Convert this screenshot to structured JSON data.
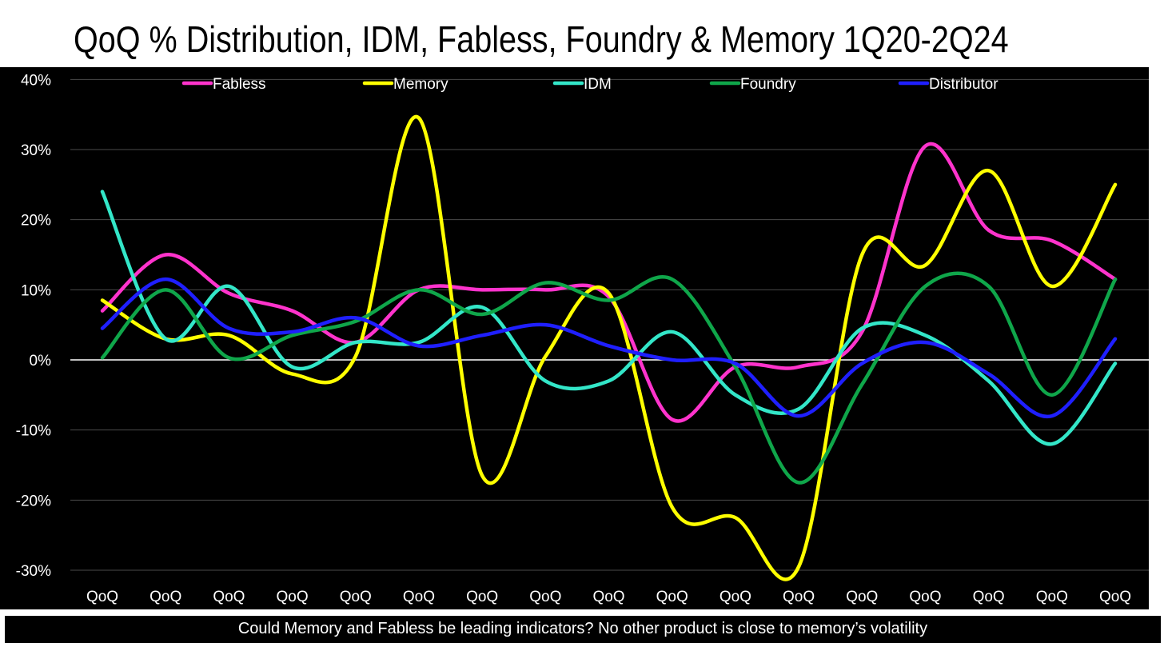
{
  "title": "QoQ % Distribution, IDM, Fabless, Foundry & Memory 1Q20-2Q24",
  "footer": "Could Memory and Fabless be leading indicators? No other product is close to memory’s volatility",
  "chart_data": {
    "type": "line",
    "title": "QoQ % Distribution, IDM, Fabless, Foundry & Memory 1Q20-2Q24",
    "xlabel": "",
    "ylabel": "",
    "categories": [
      "QoQ",
      "QoQ",
      "QoQ",
      "QoQ",
      "QoQ",
      "QoQ",
      "QoQ",
      "QoQ",
      "QoQ",
      "QoQ",
      "QoQ",
      "QoQ",
      "QoQ",
      "QoQ",
      "QoQ",
      "QoQ",
      "QoQ"
    ],
    "ylim": [
      -30,
      40
    ],
    "yticks": [
      40,
      30,
      20,
      10,
      0,
      -10,
      -20,
      -30
    ],
    "ytick_labels": [
      "40%",
      "30%",
      "20%",
      "10%",
      "0%",
      "-10%",
      "-20%",
      "-30%"
    ],
    "grid": true,
    "legend_position": "top",
    "smooth": true,
    "series": [
      {
        "name": "Fabless",
        "color": "#ff33cc",
        "values": [
          7,
          15,
          9.5,
          7,
          2.5,
          10,
          10,
          10,
          9,
          -8.5,
          -1,
          -1,
          4,
          30.5,
          18.5,
          17,
          11.5
        ]
      },
      {
        "name": "Memory",
        "color": "#ffff00",
        "values": [
          8.5,
          3,
          3.5,
          -2,
          0.5,
          34.5,
          -16.5,
          0.5,
          9.5,
          -21,
          -22.5,
          -29.5,
          15,
          13.5,
          27,
          10.5,
          25
        ]
      },
      {
        "name": "IDM",
        "color": "#33e6c8",
        "values": [
          24,
          3,
          10.5,
          -1,
          2.5,
          2.5,
          7.5,
          -3,
          -3,
          4,
          -5,
          -7,
          4.5,
          3.5,
          -3,
          -12,
          -0.5
        ]
      },
      {
        "name": "Foundry",
        "color": "#0fa64a",
        "values": [
          0.3,
          10,
          0.3,
          3.5,
          5.5,
          10,
          6.5,
          11,
          8.5,
          11.5,
          -1,
          -17.5,
          -3.5,
          10.5,
          10.5,
          -5,
          11.5
        ]
      },
      {
        "name": "Distributor",
        "color": "#1f1fff",
        "values": [
          4.5,
          11.5,
          4.5,
          4,
          6,
          2,
          3.5,
          5,
          2,
          0,
          -0.5,
          -8,
          -0.5,
          2.5,
          -2,
          -8,
          3
        ]
      }
    ]
  }
}
